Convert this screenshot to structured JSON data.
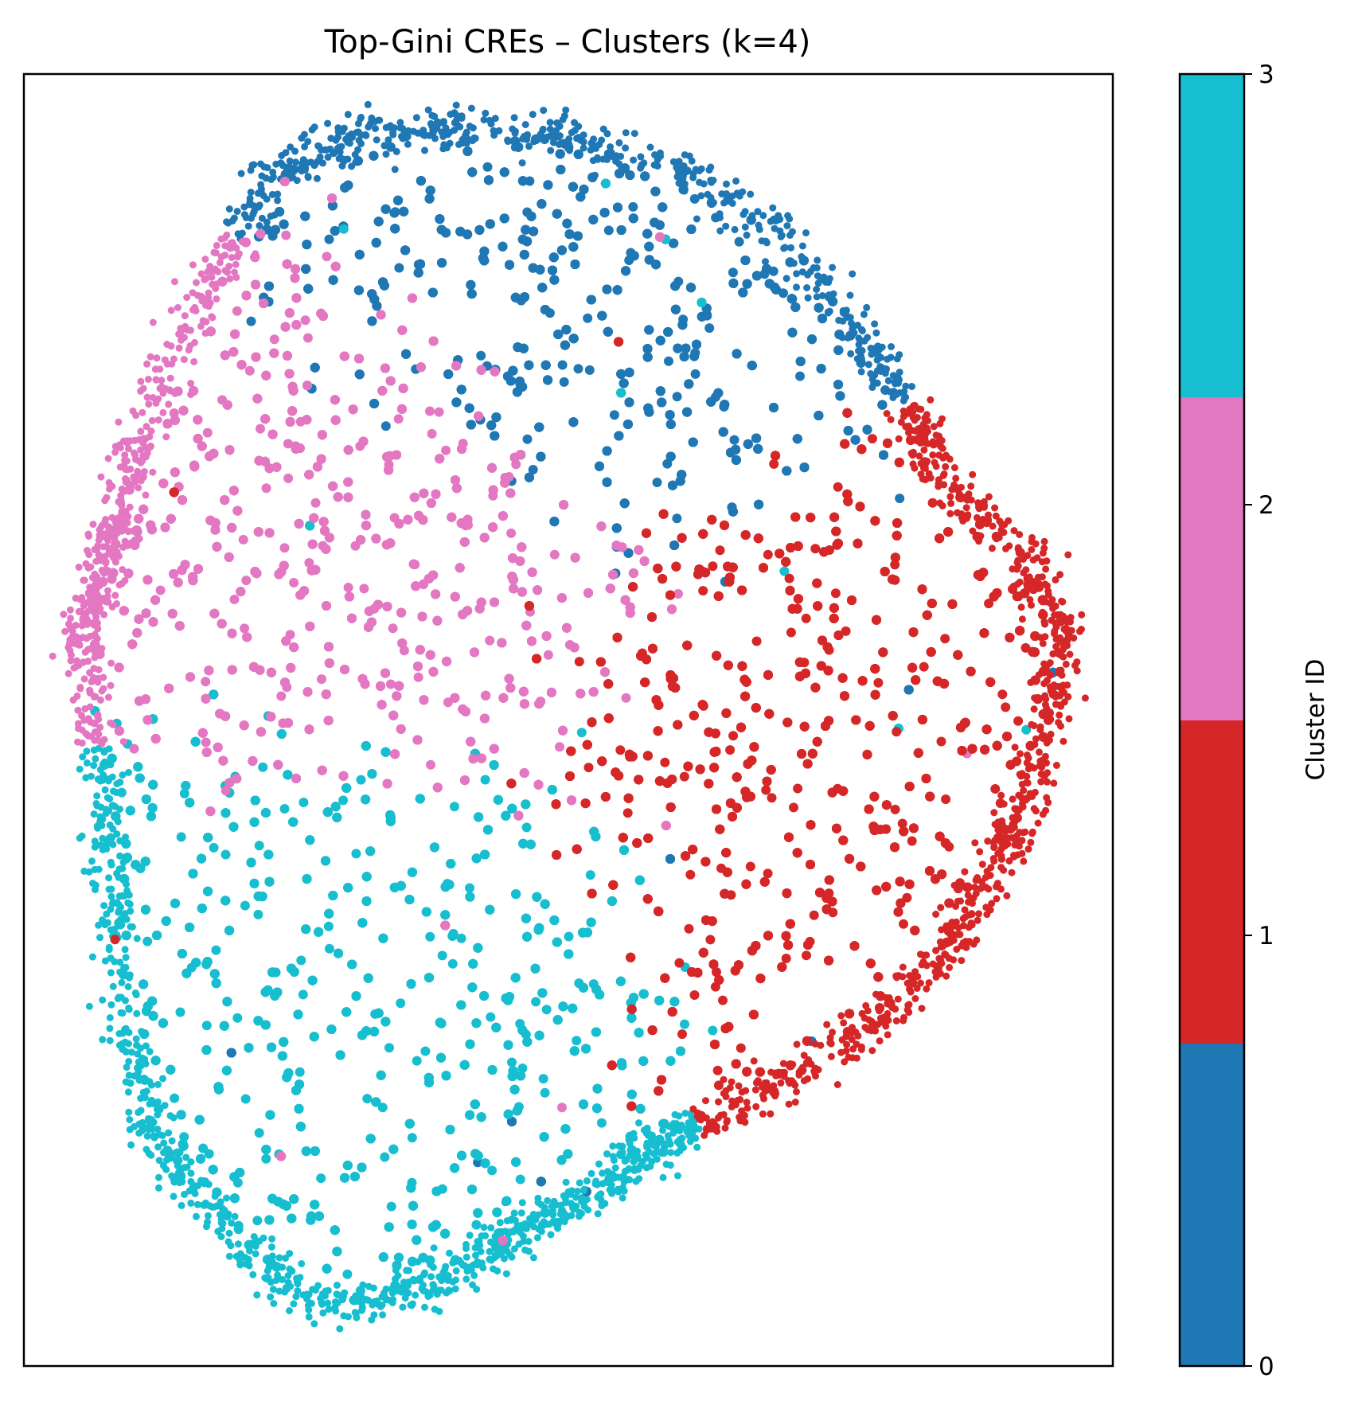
{
  "chart_data": {
    "type": "scatter",
    "title": "Top-Gini CREs – Clusters (k=4)",
    "xlabel": "",
    "ylabel": "",
    "axis_ticks_visible": false,
    "grid": false,
    "clusters": [
      {
        "id": 0,
        "color": "#1f77b4",
        "region": "top-center"
      },
      {
        "id": 1,
        "color": "#d62728",
        "region": "right"
      },
      {
        "id": 2,
        "color": "#e377c2",
        "region": "center-left"
      },
      {
        "id": 3,
        "color": "#17becf",
        "region": "bottom-left"
      }
    ],
    "colorbar": {
      "label": "Cluster ID",
      "ticks": [
        "0",
        "1",
        "2",
        "3"
      ],
      "range": [
        0,
        3
      ],
      "colors": [
        "#1f77b4",
        "#d62728",
        "#e377c2",
        "#17becf"
      ],
      "placement": "right"
    }
  }
}
